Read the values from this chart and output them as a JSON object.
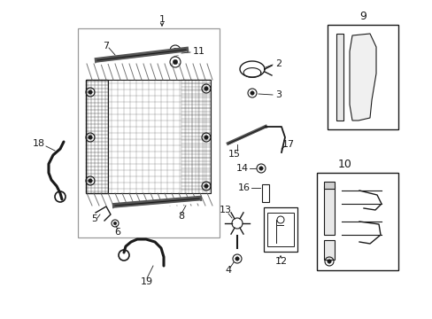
{
  "bg_color": "#ffffff",
  "line_color": "#1a1a1a",
  "gray_color": "#999999",
  "dark_gray": "#555555"
}
